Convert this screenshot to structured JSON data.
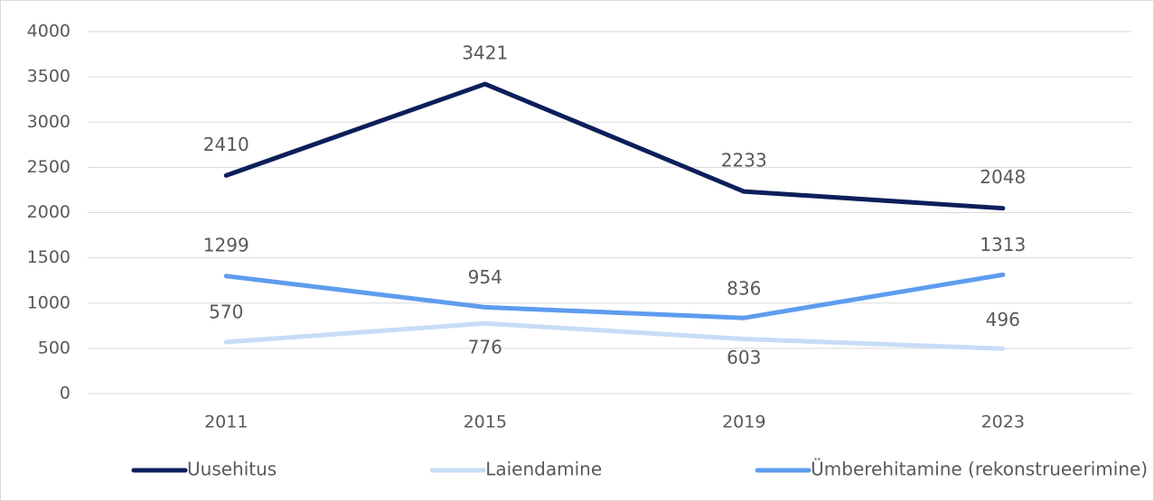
{
  "chart_data": {
    "type": "line",
    "categories": [
      "2011",
      "2015",
      "2019",
      "2023"
    ],
    "series": [
      {
        "name": "Uusehitus",
        "color": "#0c1f5a",
        "values": [
          2410,
          3421,
          2233,
          2048
        ]
      },
      {
        "name": "Laiendamine",
        "color": "#c8dcf6",
        "values": [
          570,
          776,
          603,
          496
        ]
      },
      {
        "name": "Ümberehitamine (rekonstrueerimine)",
        "color": "#5e9cee",
        "values": [
          1299,
          954,
          836,
          1313
        ]
      }
    ],
    "ylim": [
      0,
      4000
    ],
    "yticks": [
      0,
      500,
      1000,
      1500,
      2000,
      2500,
      3000,
      3500,
      4000
    ],
    "grid": true,
    "legend": "bottom"
  }
}
